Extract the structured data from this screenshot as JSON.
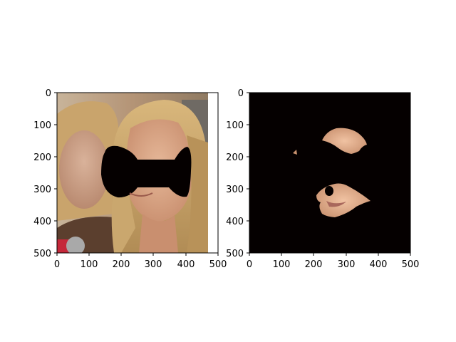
{
  "figure": {
    "panels": [
      {
        "name": "left-image-panel",
        "description_kind": "photo",
        "x_ticks": [
          "0",
          "100",
          "200",
          "300",
          "400",
          "500"
        ],
        "y_ticks": [
          "0",
          "100",
          "200",
          "300",
          "400",
          "500"
        ]
      },
      {
        "name": "right-mask-panel",
        "description_kind": "masked-skin",
        "x_ticks": [
          "0",
          "100",
          "200",
          "300",
          "400",
          "500"
        ],
        "y_ticks": [
          "0",
          "100",
          "200",
          "300",
          "400",
          "500"
        ]
      }
    ],
    "colors": {
      "mask": "#050000",
      "skin": "#d9a584",
      "hair": "#c9a36a",
      "background_photo": "#b89a7c"
    }
  }
}
